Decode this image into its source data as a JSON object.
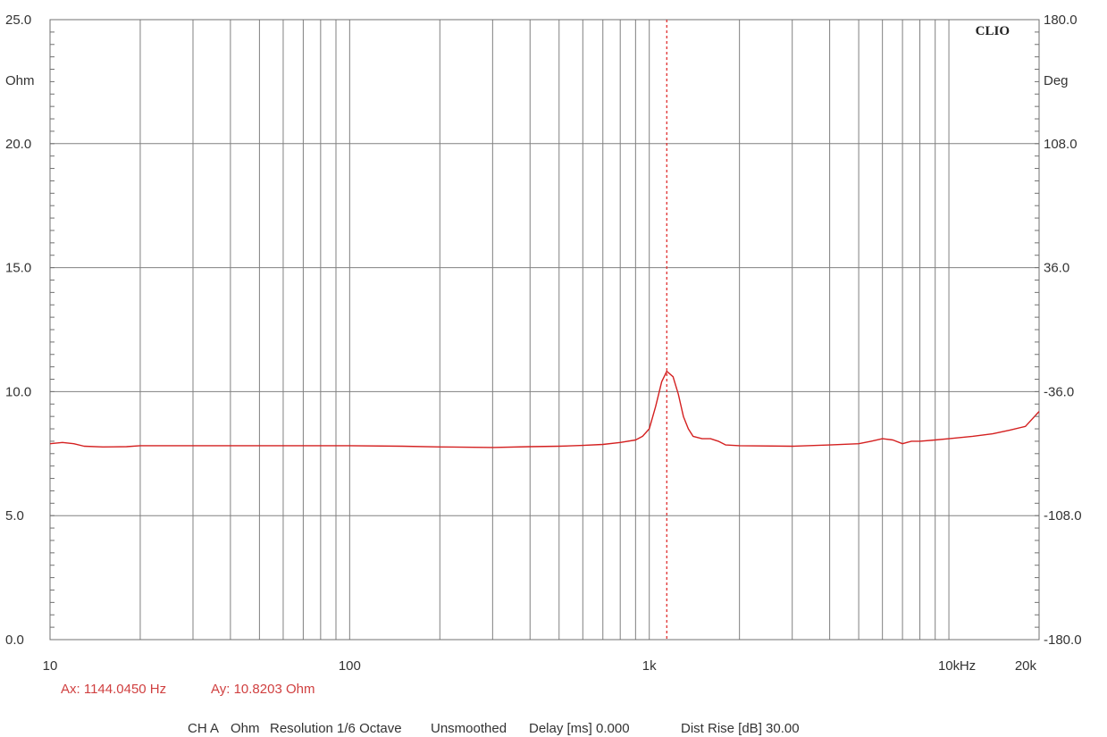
{
  "chart_data": {
    "type": "line",
    "brand_label": "CLIO",
    "x_axis": {
      "scale": "log",
      "range": [
        10,
        20000
      ],
      "unit_label": "Hz",
      "tick_values": [
        10,
        100,
        1000,
        10000,
        20000
      ],
      "tick_labels": [
        "10",
        "100",
        "1k",
        "10k",
        "20k"
      ]
    },
    "y_left": {
      "unit_label": "Ohm",
      "range": [
        0,
        25
      ],
      "tick_values": [
        0,
        5,
        10,
        15,
        20,
        25
      ],
      "tick_labels": [
        "0.0",
        "5.0",
        "10.0",
        "15.0",
        "20.0",
        "25.0"
      ]
    },
    "y_right": {
      "unit_label": "Deg",
      "range": [
        -180,
        180
      ],
      "tick_values": [
        -180,
        -108,
        -36,
        36,
        108,
        180
      ],
      "tick_labels": [
        "-180.0",
        "-108.0",
        "-36.0",
        "36.0",
        "108.0",
        "180.0"
      ]
    },
    "grid": true,
    "cursor": {
      "x": 1144.045,
      "y": 10.8203
    },
    "series": [
      {
        "axis": "left",
        "color": "#d42020",
        "points": [
          [
            10,
            7.9
          ],
          [
            11,
            7.95
          ],
          [
            12,
            7.9
          ],
          [
            13,
            7.8
          ],
          [
            15,
            7.77
          ],
          [
            18,
            7.78
          ],
          [
            20,
            7.82
          ],
          [
            30,
            7.82
          ],
          [
            50,
            7.82
          ],
          [
            100,
            7.82
          ],
          [
            150,
            7.8
          ],
          [
            200,
            7.77
          ],
          [
            300,
            7.75
          ],
          [
            400,
            7.78
          ],
          [
            500,
            7.8
          ],
          [
            600,
            7.83
          ],
          [
            700,
            7.87
          ],
          [
            800,
            7.95
          ],
          [
            900,
            8.05
          ],
          [
            950,
            8.2
          ],
          [
            1000,
            8.5
          ],
          [
            1050,
            9.4
          ],
          [
            1100,
            10.4
          ],
          [
            1144.045,
            10.8203
          ],
          [
            1200,
            10.6
          ],
          [
            1250,
            9.9
          ],
          [
            1300,
            9.0
          ],
          [
            1350,
            8.5
          ],
          [
            1400,
            8.2
          ],
          [
            1500,
            8.1
          ],
          [
            1600,
            8.1
          ],
          [
            1700,
            8.0
          ],
          [
            1800,
            7.85
          ],
          [
            2000,
            7.82
          ],
          [
            3000,
            7.8
          ],
          [
            4000,
            7.85
          ],
          [
            5000,
            7.9
          ],
          [
            5500,
            8.0
          ],
          [
            6000,
            8.1
          ],
          [
            6500,
            8.05
          ],
          [
            7000,
            7.9
          ],
          [
            7500,
            8.0
          ],
          [
            8000,
            8.0
          ],
          [
            9000,
            8.05
          ],
          [
            10000,
            8.1
          ],
          [
            12000,
            8.2
          ],
          [
            14000,
            8.3
          ],
          [
            16000,
            8.45
          ],
          [
            18000,
            8.6
          ],
          [
            20000,
            9.2
          ]
        ]
      }
    ]
  },
  "readout": {
    "ax_text": "Ax: 1144.0450 Hz",
    "ay_text": "Ay: 10.8203 Ohm"
  },
  "status_bar": {
    "channel": "CH A",
    "unit": "Ohm",
    "resolution": "Resolution 1/6 Octave",
    "smoothing": "Unsmoothed",
    "delay": "Delay [ms] 0.000",
    "dist_rise": "Dist Rise [dB] 30.00"
  },
  "colors": {
    "trace": "#d42020",
    "cursor": "#e03030",
    "grid": "#808080",
    "frame": "#707070",
    "readout": "#d04040"
  }
}
